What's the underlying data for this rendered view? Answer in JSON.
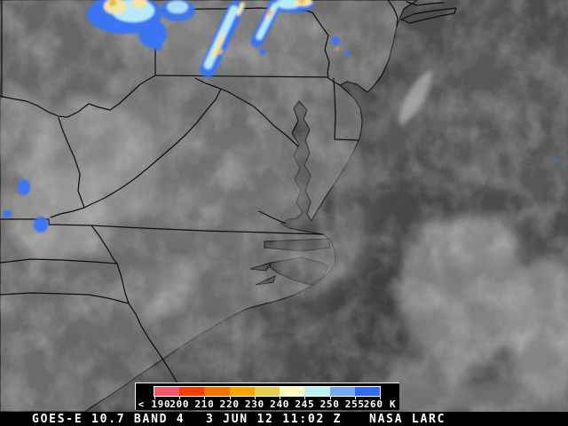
{
  "status": {
    "product": "GOES-E 10.7 BAND 4",
    "datetime": "3 JUN 12 11:02 Z",
    "credit": "NASA LARC"
  },
  "colorbar": {
    "unit": "K",
    "labels": [
      "< 190",
      "200",
      "210",
      "220",
      "230",
      "240",
      "245",
      "250",
      "255",
      "260 K"
    ],
    "segments": [
      {
        "range": "< 190",
        "color": "#f4566a"
      },
      {
        "range": "190-200",
        "color": "#f53d00"
      },
      {
        "range": "200-210",
        "color": "#f57400"
      },
      {
        "range": "210-220",
        "color": "#fba300"
      },
      {
        "range": "220-230",
        "color": "#e2ce4c"
      },
      {
        "range": "230-240",
        "color": "#fbf9c4"
      },
      {
        "range": "240-245",
        "color": "#beeff3"
      },
      {
        "range": "245-250",
        "color": "#72a9f2"
      },
      {
        "range": "250-255",
        "color": "#2e6cf5"
      }
    ]
  },
  "palette": {
    "ocean_gray": "#4c4c4c",
    "land_gray": "#6e6e6e",
    "bright_cloud_gray": "#9a9a9a",
    "enhancement_blue": "#3b74f2",
    "enhancement_cyan": "#b6eafb",
    "enhancement_pale_yellow": "#f4e3a2",
    "enhancement_gold": "#e2b93e",
    "border_line": "#0d0d0d",
    "text_white": "#ffffff"
  }
}
